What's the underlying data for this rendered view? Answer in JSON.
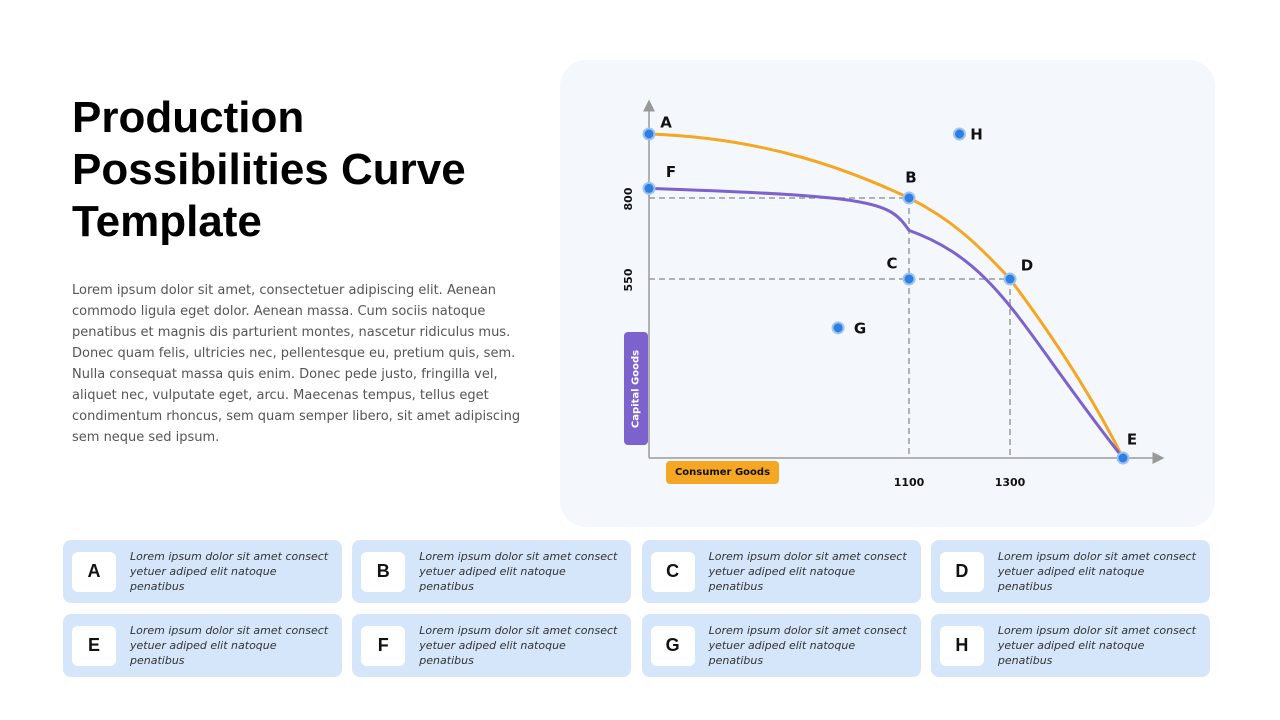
{
  "title_lines": [
    "Production",
    "Possibilities Curve",
    "Template"
  ],
  "body_text": "Lorem ipsum dolor sit amet, consectetuer adipiscing elit. Aenean commodo ligula eget dolor. Aenean massa. Cum sociis natoque penatibus et magnis dis parturient montes, nascetur ridiculus mus. Donec quam felis, ultricies nec, pellentesque eu, pretium quis, sem. Nulla consequat massa quis enim. Donec pede justo, fringilla vel, aliquet nec, vulputate eget, arcu. Maecenas tempus, tellus eget condimentum rhoncus, sem quam semper libero, sit amet adipiscing sem neque sed ipsum.",
  "colors": {
    "orange_curve": "#f5a623",
    "purple_curve": "#7b62cc",
    "point_fill": "#2f7fe0",
    "panel_bg": "#f4f8fd",
    "card_bg": "#d5e6fb"
  },
  "chart_data": {
    "type": "line",
    "xlabel": "Consumer Goods",
    "ylabel": "Capital Goods",
    "x_ticks": [
      "1100",
      "1300"
    ],
    "y_ticks": [
      "800",
      "550"
    ],
    "points": [
      {
        "label": "A",
        "x": 0,
        "y": 1000
      },
      {
        "label": "B",
        "x": 1100,
        "y": 800
      },
      {
        "label": "C",
        "x": 1100,
        "y": 550
      },
      {
        "label": "D",
        "x": 1300,
        "y": 550
      },
      {
        "label": "E",
        "x": 1500,
        "y": 0
      },
      {
        "label": "F",
        "x": 0,
        "y": 830
      },
      {
        "label": "G",
        "x": 800,
        "y": 400
      },
      {
        "label": "H",
        "x": 1200,
        "y": 1000
      }
    ],
    "guides": [
      {
        "x": 1100,
        "y": 800
      },
      {
        "x": 1300,
        "y": 550
      }
    ]
  },
  "cards": [
    {
      "letter": "A",
      "text": "Lorem ipsum dolor sit amet consect yetuer adiped elit natoque penatibus"
    },
    {
      "letter": "B",
      "text": "Lorem ipsum dolor sit amet consect yetuer adiped elit natoque penatibus"
    },
    {
      "letter": "C",
      "text": "Lorem ipsum dolor sit amet consect yetuer adiped elit natoque penatibus"
    },
    {
      "letter": "D",
      "text": "Lorem ipsum dolor sit amet consect yetuer adiped elit natoque penatibus"
    },
    {
      "letter": "E",
      "text": "Lorem ipsum dolor sit amet consect yetuer adiped elit natoque penatibus"
    },
    {
      "letter": "F",
      "text": "Lorem ipsum dolor sit amet consect yetuer adiped elit natoque penatibus"
    },
    {
      "letter": "G",
      "text": "Lorem ipsum dolor sit amet consect yetuer adiped elit natoque penatibus"
    },
    {
      "letter": "H",
      "text": "Lorem ipsum dolor sit amet consect yetuer adiped elit natoque penatibus"
    }
  ]
}
